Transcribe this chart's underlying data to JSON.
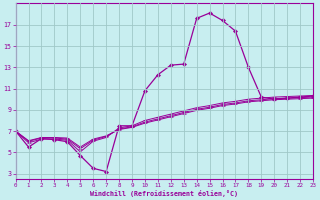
{
  "xlabel": "Windchill (Refroidissement éolien,°C)",
  "bg_color": "#c8eef0",
  "grid_color": "#a0c8c8",
  "line_color": "#990099",
  "xlim": [
    0,
    23
  ],
  "ylim": [
    2.5,
    19
  ],
  "yticks": [
    3,
    5,
    7,
    9,
    11,
    13,
    15,
    17
  ],
  "xticks": [
    0,
    1,
    2,
    3,
    4,
    5,
    6,
    7,
    8,
    9,
    10,
    11,
    12,
    13,
    14,
    15,
    16,
    17,
    18,
    19,
    20,
    21,
    22,
    23
  ],
  "series1_x": [
    0,
    1,
    2,
    3,
    4,
    5,
    6,
    7,
    8,
    9,
    10,
    11,
    12,
    13,
    14,
    15,
    16,
    17,
    18,
    19,
    20,
    21,
    22,
    23
  ],
  "series1_y": [
    7.0,
    5.5,
    6.3,
    6.2,
    6.0,
    4.7,
    3.5,
    3.2,
    7.5,
    7.5,
    10.8,
    12.3,
    13.2,
    13.3,
    17.6,
    18.1,
    17.4,
    16.4,
    13.0,
    10.2,
    10.0,
    10.1,
    10.2,
    10.3
  ],
  "series2_x": [
    0,
    1,
    2,
    3,
    4,
    5,
    6,
    7,
    8,
    9,
    10,
    11,
    12,
    13,
    14,
    15,
    16,
    17,
    18,
    19,
    20,
    21,
    22,
    23
  ],
  "series2_y": [
    7.0,
    6.1,
    6.4,
    6.4,
    6.35,
    5.5,
    6.25,
    6.55,
    7.15,
    7.35,
    7.75,
    8.05,
    8.35,
    8.65,
    8.95,
    9.15,
    9.4,
    9.55,
    9.75,
    9.85,
    9.95,
    10.0,
    10.05,
    10.1
  ],
  "series3_x": [
    0,
    1,
    2,
    3,
    4,
    5,
    6,
    7,
    8,
    9,
    10,
    11,
    12,
    13,
    14,
    15,
    16,
    17,
    18,
    19,
    20,
    21,
    22,
    23
  ],
  "series3_y": [
    7.0,
    6.05,
    6.35,
    6.35,
    6.25,
    5.35,
    6.15,
    6.5,
    7.2,
    7.4,
    7.85,
    8.15,
    8.45,
    8.75,
    9.05,
    9.25,
    9.5,
    9.65,
    9.85,
    9.95,
    10.05,
    10.1,
    10.15,
    10.2
  ],
  "series4_x": [
    0,
    1,
    2,
    3,
    4,
    5,
    6,
    7,
    8,
    9,
    10,
    11,
    12,
    13,
    14,
    15,
    16,
    17,
    18,
    19,
    20,
    21,
    22,
    23
  ],
  "series4_y": [
    7.0,
    5.9,
    6.25,
    6.25,
    6.15,
    5.05,
    6.05,
    6.4,
    7.3,
    7.5,
    8.0,
    8.3,
    8.6,
    8.9,
    9.2,
    9.4,
    9.65,
    9.8,
    10.0,
    10.1,
    10.2,
    10.25,
    10.3,
    10.35
  ]
}
